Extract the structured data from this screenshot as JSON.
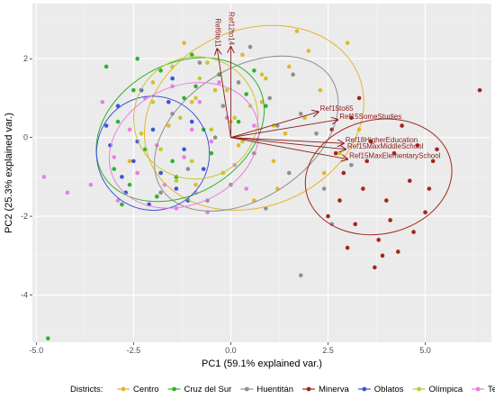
{
  "chart_data": {
    "type": "scatter",
    "subtype": "pca-biplot",
    "title": "",
    "xlabel": "PC1 (59.1% explained var.)",
    "ylabel": "PC2 (25.3% explained var.)",
    "xlim": [
      -5.1,
      6.7
    ],
    "ylim": [
      -5.2,
      3.4
    ],
    "xticks": [
      -5.0,
      -2.5,
      0.0,
      2.5,
      5.0
    ],
    "xtick_labels": [
      "-5.0",
      "-2.5",
      "0.0",
      "2.5",
      "5.0"
    ],
    "yticks": [
      -4,
      -2,
      0,
      2
    ],
    "ytick_labels": [
      "-4",
      "-2",
      "0",
      "2"
    ],
    "grid": true,
    "legend": {
      "title": "Districts:",
      "position": "bottom"
    },
    "series": [
      {
        "name": "Centro",
        "color": "#e3b62c",
        "center": [
          0.6,
          0.5
        ],
        "ellipse": {
          "rx": 2.9,
          "ry": 2.25,
          "angle": -22
        },
        "points": [
          [
            -1.2,
            2.4
          ],
          [
            0.3,
            2.1
          ],
          [
            1.5,
            1.8
          ],
          [
            -0.4,
            1.2
          ],
          [
            0.8,
            0.9
          ],
          [
            1.9,
            0.5
          ],
          [
            -1.6,
            0.3
          ],
          [
            0.2,
            -0.2
          ],
          [
            1.1,
            -0.6
          ],
          [
            2.4,
            -0.9
          ],
          [
            -0.9,
            -1.2
          ],
          [
            0.6,
            -1.6
          ],
          [
            1.7,
            2.7
          ],
          [
            2.3,
            1.2
          ],
          [
            -2.0,
            1.4
          ],
          [
            3.0,
            2.4
          ],
          [
            0.0,
            0.4
          ],
          [
            1.4,
            0.1
          ],
          [
            -0.2,
            -0.9
          ],
          [
            2.8,
            -0.4
          ],
          [
            -1.0,
            0.9
          ],
          [
            0.9,
            1.5
          ],
          [
            1.2,
            -1.3
          ],
          [
            -2.6,
            -0.6
          ],
          [
            2.0,
            2.2
          ],
          [
            3.3,
            0.2
          ]
        ]
      },
      {
        "name": "Cruz del Sur",
        "color": "#2db32d",
        "center": [
          -1.3,
          0.2
        ],
        "ellipse": {
          "rx": 2.3,
          "ry": 1.65,
          "angle": -30
        },
        "points": [
          [
            -2.5,
            1.2
          ],
          [
            -1.8,
            1.7
          ],
          [
            -1.0,
            2.1
          ],
          [
            -0.3,
            1.6
          ],
          [
            0.4,
            1.1
          ],
          [
            -2.9,
            0.4
          ],
          [
            -2.2,
            -0.3
          ],
          [
            -1.5,
            -0.6
          ],
          [
            -0.7,
            0.2
          ],
          [
            0.2,
            0.4
          ],
          [
            -2.6,
            -1.2
          ],
          [
            -1.9,
            -1.5
          ],
          [
            -3.0,
            -0.8
          ],
          [
            -1.2,
            1.0
          ],
          [
            -0.5,
            -0.4
          ],
          [
            0.9,
            0.8
          ],
          [
            -2.4,
            2.0
          ],
          [
            -3.2,
            1.8
          ],
          [
            -1.4,
            -1.0
          ],
          [
            -4.7,
            -5.1
          ],
          [
            -0.9,
            1.3
          ],
          [
            0.6,
            1.7
          ],
          [
            -2.8,
            -1.7
          ]
        ]
      },
      {
        "name": "Huentitán",
        "color": "#8f8f8f",
        "center": [
          0.4,
          0.1
        ],
        "ellipse": {
          "rx": 2.6,
          "ry": 1.65,
          "angle": -33
        },
        "points": [
          [
            -0.8,
            1.9
          ],
          [
            0.2,
            1.4
          ],
          [
            1.0,
            1.0
          ],
          [
            1.8,
            0.6
          ],
          [
            -1.5,
            0.6
          ],
          [
            -0.4,
            0.0
          ],
          [
            0.6,
            -0.4
          ],
          [
            1.5,
            -0.9
          ],
          [
            2.4,
            -1.3
          ],
          [
            -1.1,
            -0.8
          ],
          [
            0.0,
            -1.2
          ],
          [
            0.9,
            -1.8
          ],
          [
            1.6,
            1.6
          ],
          [
            -0.2,
            0.8
          ],
          [
            2.2,
            0.1
          ],
          [
            3.1,
            -0.7
          ],
          [
            -1.8,
            -1.4
          ],
          [
            0.5,
            2.3
          ],
          [
            1.2,
            0.3
          ],
          [
            -0.6,
            -1.6
          ],
          [
            2.6,
            -2.2
          ],
          [
            1.8,
            -3.5
          ]
        ]
      },
      {
        "name": "Minerva",
        "color": "#a3251d",
        "center": [
          3.8,
          -1.0
        ],
        "ellipse": {
          "rx": 1.9,
          "ry": 1.45,
          "angle": -12
        },
        "points": [
          [
            2.6,
            0.2
          ],
          [
            3.1,
            0.5
          ],
          [
            3.6,
            -0.1
          ],
          [
            4.2,
            -0.4
          ],
          [
            4.8,
            -0.2
          ],
          [
            5.2,
            -0.6
          ],
          [
            2.9,
            -0.9
          ],
          [
            3.4,
            -1.3
          ],
          [
            4.0,
            -1.6
          ],
          [
            4.6,
            -1.1
          ],
          [
            5.0,
            -1.9
          ],
          [
            3.2,
            -2.2
          ],
          [
            3.8,
            -2.6
          ],
          [
            4.3,
            -2.9
          ],
          [
            2.8,
            -1.6
          ],
          [
            3.5,
            -0.6
          ],
          [
            4.4,
            0.3
          ],
          [
            5.3,
            -0.3
          ],
          [
            3.0,
            -2.8
          ],
          [
            4.1,
            -2.1
          ],
          [
            2.7,
            -0.4
          ],
          [
            3.9,
            -3.0
          ],
          [
            4.7,
            -2.4
          ],
          [
            3.3,
            1.0
          ],
          [
            6.4,
            1.2
          ],
          [
            5.1,
            -1.3
          ],
          [
            2.5,
            -2.0
          ],
          [
            3.7,
            -3.3
          ]
        ]
      },
      {
        "name": "Oblatos",
        "color": "#3a56d4",
        "center": [
          -2.0,
          -0.4
        ],
        "ellipse": {
          "rx": 1.45,
          "ry": 1.45,
          "angle": -15
        },
        "points": [
          [
            -2.9,
            0.8
          ],
          [
            -2.3,
            1.2
          ],
          [
            -1.6,
            0.9
          ],
          [
            -1.0,
            0.4
          ],
          [
            -3.1,
            -0.2
          ],
          [
            -2.5,
            -0.6
          ],
          [
            -1.8,
            -0.9
          ],
          [
            -1.2,
            -0.3
          ],
          [
            -2.7,
            -1.4
          ],
          [
            -2.1,
            -1.7
          ],
          [
            -1.4,
            -1.3
          ],
          [
            -3.2,
            0.3
          ],
          [
            -0.7,
            -0.8
          ],
          [
            -2.0,
            0.2
          ],
          [
            -1.5,
            1.5
          ],
          [
            -2.8,
            -1.0
          ],
          [
            -1.1,
            -1.6
          ],
          [
            -2.4,
            -0.1
          ]
        ]
      },
      {
        "name": "Olímpica",
        "color": "#c5c92e",
        "center": [
          -0.9,
          0.5
        ],
        "ellipse": {
          "rx": 1.6,
          "ry": 1.55,
          "angle": -20
        },
        "points": [
          [
            -1.5,
            1.8
          ],
          [
            -0.8,
            1.5
          ],
          [
            -0.1,
            1.2
          ],
          [
            0.5,
            0.8
          ],
          [
            -2.0,
            0.9
          ],
          [
            -1.3,
            0.5
          ],
          [
            -0.5,
            0.2
          ],
          [
            0.3,
            -0.1
          ],
          [
            -1.8,
            -0.3
          ],
          [
            -1.0,
            -0.6
          ],
          [
            -0.2,
            -0.9
          ],
          [
            -2.3,
            0.1
          ],
          [
            -0.6,
            1.9
          ],
          [
            0.8,
            1.6
          ],
          [
            -1.4,
            -1.1
          ],
          [
            0.1,
            0.5
          ],
          [
            -0.9,
            1.0
          ],
          [
            1.1,
            0.3
          ]
        ]
      },
      {
        "name": "Tetlán",
        "color": "#e77fe0",
        "center": [
          -1.2,
          -0.2
        ],
        "ellipse": {
          "rx": 2.0,
          "ry": 1.5,
          "angle": -25
        },
        "points": [
          [
            -2.2,
            1.0
          ],
          [
            -1.5,
            1.3
          ],
          [
            -0.8,
            0.9
          ],
          [
            -0.1,
            0.5
          ],
          [
            -2.6,
            0.2
          ],
          [
            -1.9,
            -0.2
          ],
          [
            -1.2,
            -0.5
          ],
          [
            -0.5,
            -0.1
          ],
          [
            -2.4,
            -0.9
          ],
          [
            -1.7,
            -1.2
          ],
          [
            -0.9,
            -1.4
          ],
          [
            0.1,
            -0.7
          ],
          [
            -3.0,
            -0.5
          ],
          [
            -0.3,
            1.4
          ],
          [
            -1.0,
            0.2
          ],
          [
            -3.6,
            -1.2
          ],
          [
            -4.2,
            -1.4
          ],
          [
            -2.9,
            -1.6
          ],
          [
            0.4,
            -1.3
          ],
          [
            -1.4,
            -1.8
          ],
          [
            -4.8,
            -1.0
          ],
          [
            -3.3,
            0.9
          ],
          [
            0.6,
            0.3
          ],
          [
            -0.6,
            -1.9
          ]
        ]
      }
    ],
    "loadings": [
      {
        "label": "Ref6to11",
        "x": -0.35,
        "y": 2.25
      },
      {
        "label": "Ref12to14",
        "x": 0.0,
        "y": 2.3
      },
      {
        "label": "Ref15to65",
        "x": 2.25,
        "y": 0.65
      },
      {
        "label": "Ref15SomeStudies",
        "x": 2.75,
        "y": 0.45
      },
      {
        "label": "Ref18HigherEducation",
        "x": 2.9,
        "y": -0.15
      },
      {
        "label": "Ref15MaxMiddleSchool",
        "x": 2.95,
        "y": -0.3
      },
      {
        "label": "Ref15MaxElementarySchool",
        "x": 3.0,
        "y": -0.55
      }
    ]
  }
}
